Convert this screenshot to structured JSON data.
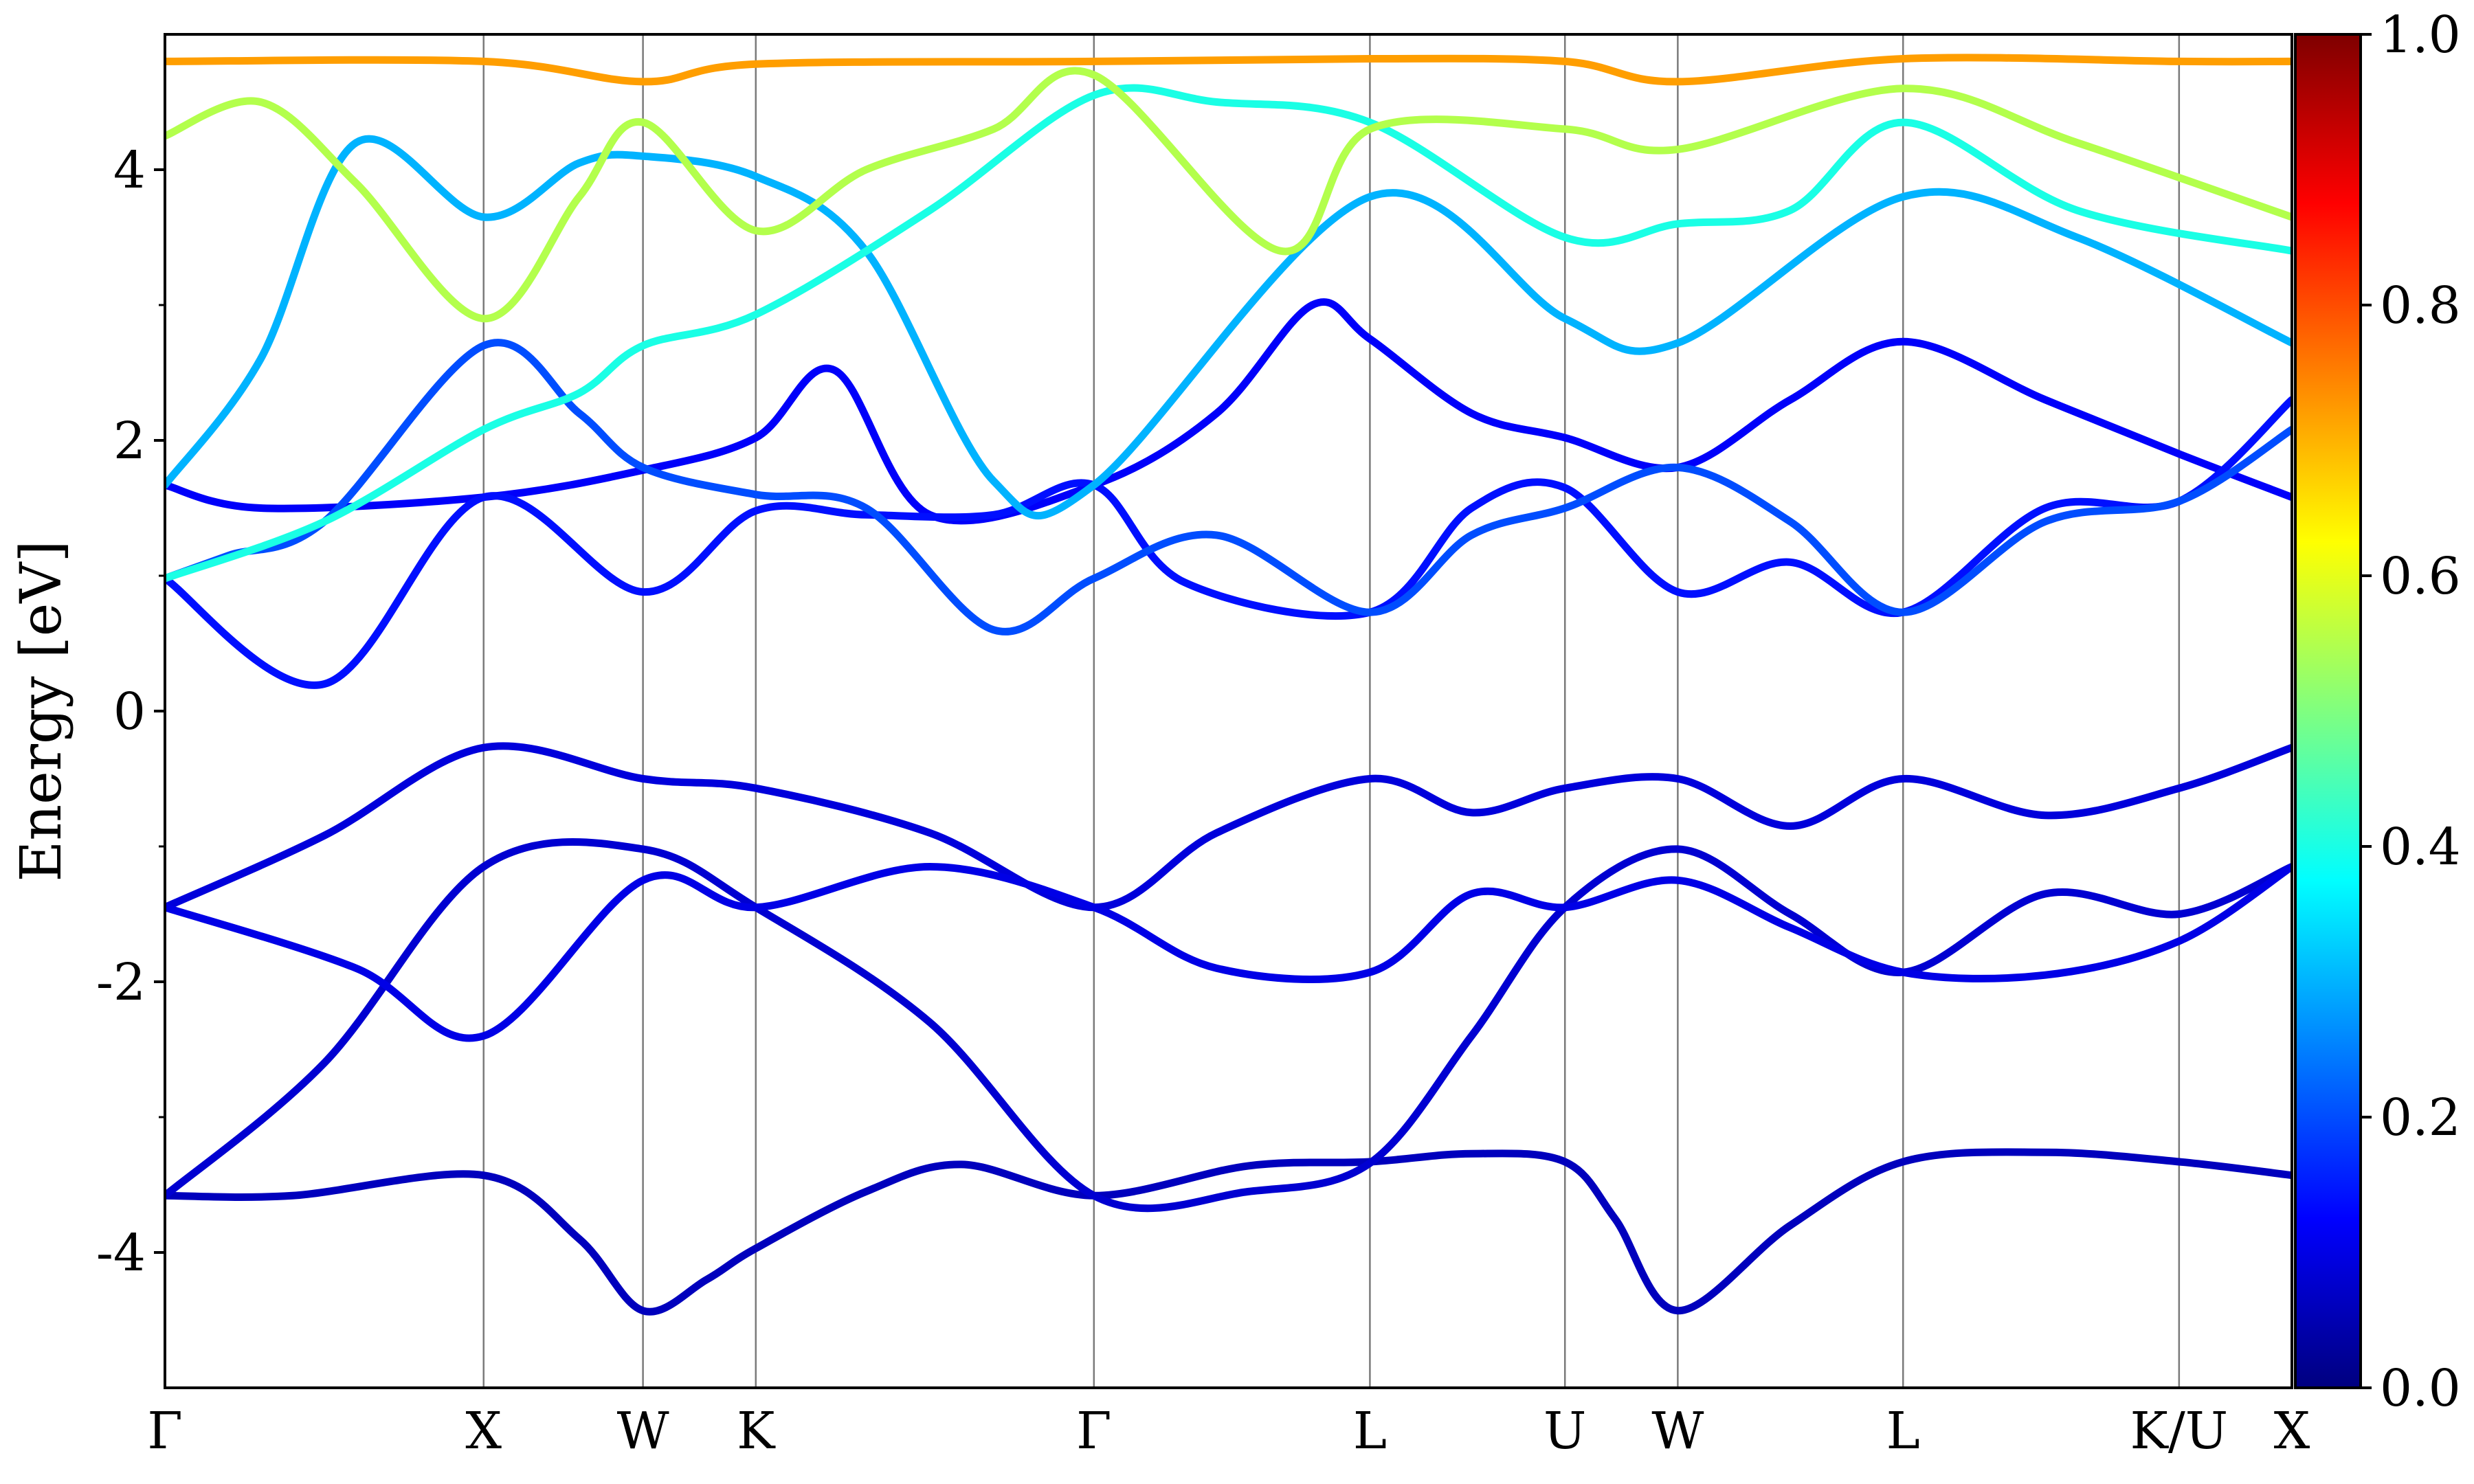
{
  "chart_data": {
    "type": "line",
    "title": "",
    "ylabel": "Energy [eV]",
    "xlabel": "",
    "ylim": [
      -5,
      5
    ],
    "yticks": [
      {
        "value": 4,
        "label": "4"
      },
      {
        "value": 2,
        "label": "2"
      },
      {
        "value": 0,
        "label": "0"
      },
      {
        "value": -2,
        "label": "-2"
      },
      {
        "value": -4,
        "label": "-4"
      }
    ],
    "y_minor_ticks": [
      3,
      1,
      -1,
      -3
    ],
    "k_path": [
      {
        "label": "Γ",
        "k": 0.0
      },
      {
        "label": "X",
        "k": 1.0
      },
      {
        "label": "W",
        "k": 1.5
      },
      {
        "label": "K",
        "k": 1.854
      },
      {
        "label": "Γ",
        "k": 2.915
      },
      {
        "label": "L",
        "k": 3.781
      },
      {
        "label": "U",
        "k": 4.393
      },
      {
        "label": "W",
        "k": 4.747
      },
      {
        "label": "L",
        "k": 5.454
      },
      {
        "label": "K/U",
        "k": 6.32
      },
      {
        "label": "X",
        "k": 6.674
      }
    ],
    "grid": "vertical lines at high-symmetry points",
    "colorbar": {
      "range": [
        0.0,
        1.0
      ],
      "ticks": [
        "0.0",
        "0.2",
        "0.4",
        "0.6",
        "0.8",
        "1.0"
      ],
      "colormap": "jet"
    },
    "series": [
      {
        "color_value": 0.06,
        "points": [
          [
            0,
            -3.58
          ],
          [
            0.4,
            -3.58
          ],
          [
            1.0,
            -3.43
          ],
          [
            1.3,
            -3.9
          ],
          [
            1.5,
            -4.43
          ],
          [
            1.7,
            -4.2
          ],
          [
            1.854,
            -3.97
          ],
          [
            2.2,
            -3.55
          ],
          [
            2.5,
            -3.35
          ],
          [
            2.915,
            -3.58
          ],
          [
            3.4,
            -3.36
          ],
          [
            3.781,
            -3.33
          ],
          [
            4.1,
            -3.27
          ],
          [
            4.393,
            -3.33
          ],
          [
            4.55,
            -3.75
          ],
          [
            4.747,
            -4.43
          ],
          [
            5.1,
            -3.8
          ],
          [
            5.454,
            -3.33
          ],
          [
            5.9,
            -3.26
          ],
          [
            6.32,
            -3.33
          ],
          [
            6.674,
            -3.43
          ]
        ]
      },
      {
        "color_value": 0.08,
        "points": [
          [
            0,
            -3.58
          ],
          [
            0.5,
            -2.6
          ],
          [
            1.0,
            -1.15
          ],
          [
            1.5,
            -1.02
          ],
          [
            1.854,
            -1.45
          ],
          [
            2.4,
            -2.3
          ],
          [
            2.915,
            -3.58
          ],
          [
            3.4,
            -3.55
          ],
          [
            3.781,
            -3.34
          ],
          [
            4.1,
            -2.4
          ],
          [
            4.393,
            -1.45
          ],
          [
            4.747,
            -1.02
          ],
          [
            5.1,
            -1.5
          ],
          [
            5.454,
            -1.93
          ],
          [
            5.9,
            -1.35
          ],
          [
            6.32,
            -1.5
          ],
          [
            6.674,
            -1.15
          ]
        ]
      },
      {
        "color_value": 0.09,
        "points": [
          [
            0,
            -1.45
          ],
          [
            0.5,
            -0.92
          ],
          [
            1.0,
            -0.27
          ],
          [
            1.5,
            -0.5
          ],
          [
            1.854,
            -0.57
          ],
          [
            2.4,
            -0.9
          ],
          [
            2.915,
            -1.45
          ],
          [
            3.3,
            -0.9
          ],
          [
            3.781,
            -0.5
          ],
          [
            4.1,
            -0.75
          ],
          [
            4.393,
            -0.57
          ],
          [
            4.747,
            -0.5
          ],
          [
            5.1,
            -0.85
          ],
          [
            5.454,
            -0.5
          ],
          [
            5.9,
            -0.77
          ],
          [
            6.32,
            -0.57
          ],
          [
            6.674,
            -0.27
          ]
        ]
      },
      {
        "color_value": 0.1,
        "points": [
          [
            0,
            -1.45
          ],
          [
            0.6,
            -1.9
          ],
          [
            1.0,
            -2.4
          ],
          [
            1.5,
            -1.25
          ],
          [
            1.854,
            -1.45
          ],
          [
            2.4,
            -1.15
          ],
          [
            2.915,
            -1.45
          ],
          [
            3.3,
            -1.9
          ],
          [
            3.781,
            -1.93
          ],
          [
            4.1,
            -1.35
          ],
          [
            4.393,
            -1.45
          ],
          [
            4.747,
            -1.25
          ],
          [
            5.1,
            -1.6
          ],
          [
            5.454,
            -1.93
          ],
          [
            5.9,
            -1.95
          ],
          [
            6.32,
            -1.7
          ],
          [
            6.674,
            -1.15
          ]
        ]
      },
      {
        "color_value": 0.12,
        "points": [
          [
            0,
            1.67
          ],
          [
            0.3,
            1.5
          ],
          [
            1.0,
            1.58
          ],
          [
            1.5,
            1.78
          ],
          [
            1.854,
            2.02
          ],
          [
            2.1,
            2.52
          ],
          [
            2.4,
            1.45
          ],
          [
            2.915,
            1.67
          ],
          [
            3.3,
            2.2
          ],
          [
            3.6,
            3.0
          ],
          [
            3.781,
            2.75
          ],
          [
            4.1,
            2.2
          ],
          [
            4.393,
            2.02
          ],
          [
            4.747,
            1.8
          ],
          [
            5.1,
            2.3
          ],
          [
            5.454,
            2.73
          ],
          [
            5.9,
            2.3
          ],
          [
            6.32,
            1.9
          ],
          [
            6.674,
            1.58
          ]
        ]
      },
      {
        "color_value": 0.14,
        "points": [
          [
            0,
            0.98
          ],
          [
            0.5,
            0.2
          ],
          [
            1.0,
            1.58
          ],
          [
            1.5,
            0.88
          ],
          [
            1.854,
            1.48
          ],
          [
            2.2,
            1.45
          ],
          [
            2.6,
            1.45
          ],
          [
            2.915,
            1.67
          ],
          [
            3.2,
            0.95
          ],
          [
            3.781,
            0.73
          ],
          [
            4.1,
            1.5
          ],
          [
            4.393,
            1.65
          ],
          [
            4.747,
            0.88
          ],
          [
            5.1,
            1.1
          ],
          [
            5.454,
            0.73
          ],
          [
            5.9,
            1.5
          ],
          [
            6.32,
            1.55
          ],
          [
            6.674,
            2.3
          ]
        ]
      },
      {
        "color_value": 0.2,
        "points": [
          [
            0,
            0.98
          ],
          [
            0.2,
            1.15
          ],
          [
            0.5,
            1.4
          ],
          [
            1.0,
            2.7
          ],
          [
            1.3,
            2.2
          ],
          [
            1.5,
            1.8
          ],
          [
            1.854,
            1.6
          ],
          [
            2.2,
            1.5
          ],
          [
            2.6,
            0.6
          ],
          [
            2.915,
            0.98
          ],
          [
            3.3,
            1.3
          ],
          [
            3.781,
            0.73
          ],
          [
            4.1,
            1.3
          ],
          [
            4.393,
            1.5
          ],
          [
            4.747,
            1.8
          ],
          [
            5.1,
            1.4
          ],
          [
            5.454,
            0.73
          ],
          [
            5.9,
            1.4
          ],
          [
            6.32,
            1.55
          ],
          [
            6.674,
            2.08
          ]
        ]
      },
      {
        "color_value": 0.3,
        "points": [
          [
            0,
            1.67
          ],
          [
            0.3,
            2.6
          ],
          [
            0.6,
            4.2
          ],
          [
            1.0,
            3.65
          ],
          [
            1.3,
            4.05
          ],
          [
            1.5,
            4.1
          ],
          [
            1.854,
            3.95
          ],
          [
            2.2,
            3.4
          ],
          [
            2.6,
            1.7
          ],
          [
            2.915,
            1.67
          ],
          [
            3.781,
            3.8
          ],
          [
            4.393,
            2.9
          ],
          [
            4.747,
            2.72
          ],
          [
            5.454,
            3.8
          ],
          [
            6.0,
            3.5
          ],
          [
            6.674,
            2.72
          ]
        ]
      },
      {
        "color_value": 0.4,
        "points": [
          [
            0,
            0.98
          ],
          [
            0.5,
            1.4
          ],
          [
            1.0,
            2.08
          ],
          [
            1.3,
            2.35
          ],
          [
            1.5,
            2.7
          ],
          [
            1.854,
            2.93
          ],
          [
            2.4,
            3.7
          ],
          [
            2.915,
            4.55
          ],
          [
            3.3,
            4.5
          ],
          [
            3.781,
            4.35
          ],
          [
            4.393,
            3.5
          ],
          [
            4.747,
            3.6
          ],
          [
            5.1,
            3.7
          ],
          [
            5.454,
            4.35
          ],
          [
            6.0,
            3.7
          ],
          [
            6.674,
            3.4
          ]
        ]
      },
      {
        "color_value": 0.55,
        "points": [
          [
            0,
            4.25
          ],
          [
            0.3,
            4.5
          ],
          [
            0.6,
            3.9
          ],
          [
            1.0,
            2.9
          ],
          [
            1.3,
            3.8
          ],
          [
            1.5,
            4.35
          ],
          [
            1.854,
            3.55
          ],
          [
            2.2,
            4.0
          ],
          [
            2.6,
            4.3
          ],
          [
            2.915,
            4.7
          ],
          [
            3.5,
            3.4
          ],
          [
            3.781,
            4.3
          ],
          [
            4.393,
            4.3
          ],
          [
            4.747,
            4.15
          ],
          [
            5.454,
            4.6
          ],
          [
            6.0,
            4.2
          ],
          [
            6.674,
            3.65
          ]
        ]
      },
      {
        "color_value": 0.72,
        "points": [
          [
            0,
            4.8
          ],
          [
            1.0,
            4.8
          ],
          [
            1.5,
            4.65
          ],
          [
            1.854,
            4.78
          ],
          [
            2.915,
            4.8
          ],
          [
            3.781,
            4.82
          ],
          [
            4.393,
            4.8
          ],
          [
            4.747,
            4.65
          ],
          [
            5.454,
            4.82
          ],
          [
            6.32,
            4.8
          ],
          [
            6.674,
            4.8
          ]
        ]
      }
    ]
  }
}
